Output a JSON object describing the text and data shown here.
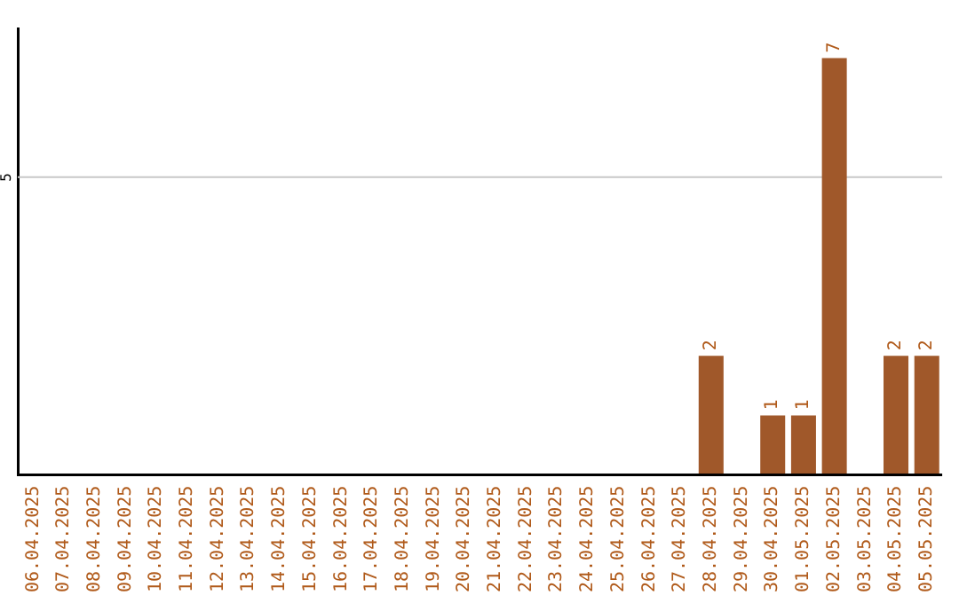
{
  "chart_data": {
    "type": "bar",
    "categories": [
      "06.04.2025",
      "07.04.2025",
      "08.04.2025",
      "09.04.2025",
      "10.04.2025",
      "11.04.2025",
      "12.04.2025",
      "13.04.2025",
      "14.04.2025",
      "15.04.2025",
      "16.04.2025",
      "17.04.2025",
      "18.04.2025",
      "19.04.2025",
      "20.04.2025",
      "21.04.2025",
      "22.04.2025",
      "23.04.2025",
      "24.04.2025",
      "25.04.2025",
      "26.04.2025",
      "27.04.2025",
      "28.04.2025",
      "29.04.2025",
      "30.04.2025",
      "01.05.2025",
      "02.05.2025",
      "03.05.2025",
      "04.05.2025",
      "05.05.2025"
    ],
    "values": [
      null,
      null,
      null,
      null,
      null,
      null,
      null,
      null,
      null,
      null,
      null,
      null,
      null,
      null,
      null,
      null,
      null,
      null,
      null,
      null,
      null,
      null,
      2,
      null,
      1,
      1,
      7,
      null,
      2,
      2
    ],
    "data_labels": true,
    "color": "#a0582a",
    "ylim": [
      0,
      7.5
    ],
    "ref_lines": [
      {
        "axis": "y",
        "value": 5,
        "label": "5",
        "color": "#c8c8c8"
      }
    ],
    "legend": false
  }
}
